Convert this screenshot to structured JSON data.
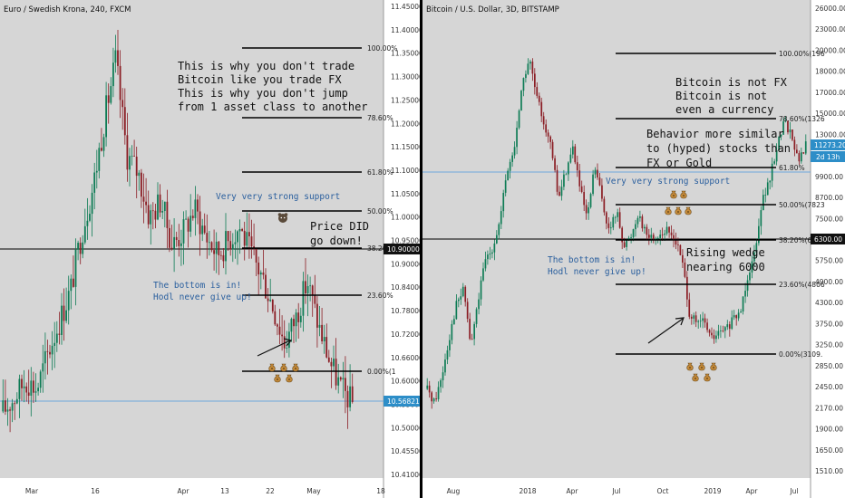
{
  "colors": {
    "panel_bg": "#d6d6d6",
    "axis_bg": "#ffffff",
    "up": "#0e7c55",
    "down": "#8b1d24",
    "fib_line": "#000000",
    "fib_label": "#222222",
    "blue_line": "#6fa8dc",
    "blue_text": "#2a5f9e",
    "black_text": "#111111",
    "price_tag_blue": "#2d8ec8",
    "price_tag_black": "#111111",
    "divider": "#000000"
  },
  "panels": [
    {
      "id": "eursek",
      "title": "Euro / Swedish Krona, 240, FXCM",
      "y_ticks": [
        "11.45000",
        "11.40000",
        "11.35000",
        "11.30000",
        "11.25000",
        "11.20000",
        "11.15000",
        "11.10000",
        "11.05000",
        "11.00000",
        "10.95000",
        "10.90000",
        "10.84000",
        "10.78000",
        "10.72000",
        "10.66000",
        "10.60000",
        "10.55000",
        "10.50000",
        "10.45500",
        "10.41000"
      ],
      "x_ticks": [
        "Mar",
        "16",
        "Apr",
        "13",
        "22",
        "May",
        "18"
      ],
      "price_tags": [
        {
          "text": "10.90000",
          "style": "black"
        },
        {
          "text": "10.56821",
          "style": "blue"
        }
      ],
      "fib_levels": [
        {
          "label": "100.00%"
        },
        {
          "label": "78.60%"
        },
        {
          "label": "61.80%"
        },
        {
          "label": "50.00%"
        },
        {
          "label": "38.20%"
        },
        {
          "label": "23.60%"
        },
        {
          "label": "0.00%(1"
        }
      ],
      "annotations": {
        "main_text": [
          "This is why you don't trade",
          "Bitcoin like you trade FX",
          "This is why you don't jump",
          "from 1 asset class to another"
        ],
        "support": "Very very strong support",
        "price_did": [
          "Price DID",
          "go down!"
        ],
        "bottom": [
          "The bottom is in!",
          "Hodl never give up!"
        ]
      },
      "icons": [
        "bear-icon",
        "money-bag-icon"
      ],
      "chart_data": {
        "type": "candlestick",
        "title": "Euro / Swedish Krona, 240, FXCM",
        "x_categories": [
          "Mar",
          "16",
          "Apr",
          "13",
          "22",
          "May",
          "18"
        ],
        "ylim": [
          10.41,
          11.45
        ],
        "price_path_approx": [
          10.55,
          10.58,
          10.62,
          10.6,
          10.68,
          10.75,
          10.82,
          10.95,
          11.05,
          11.2,
          11.33,
          11.12,
          11.08,
          10.98,
          11.02,
          10.92,
          10.95,
          11.0,
          10.94,
          10.9,
          10.93,
          10.96,
          10.9,
          10.85,
          10.78,
          10.7,
          10.76,
          10.84,
          10.74,
          10.66,
          10.6,
          10.57
        ],
        "fib_retracement": [
          {
            "level": "100.00%",
            "price": 11.35
          },
          {
            "level": "78.60%",
            "price": 11.19
          },
          {
            "level": "61.80%",
            "price": 11.07
          },
          {
            "level": "50.00%",
            "price": 10.98
          },
          {
            "level": "38.20%",
            "price": 10.9
          },
          {
            "level": "23.60%",
            "price": 10.79
          },
          {
            "level": "0.00%",
            "price": 10.62
          }
        ],
        "horizontal_lines": [
          {
            "price": 10.9,
            "color": "black"
          },
          {
            "price": 10.56821,
            "color": "blue"
          }
        ]
      }
    },
    {
      "id": "btcusd",
      "title": "Bitcoin / U.S. Dollar, 3D, BITSTAMP",
      "y_ticks": [
        "26000.00",
        "23000.00",
        "20000.00",
        "18000.00",
        "17000.00",
        "15000.00",
        "13000.00",
        "11500.00",
        "9900.00",
        "8700.00",
        "7500.00",
        "6300.00",
        "5750.00",
        "4900.00",
        "4300.00",
        "3750.00",
        "3250.00",
        "2850.00",
        "2450.00",
        "2170.00",
        "1900.00",
        "1650.00",
        "1510.00"
      ],
      "x_ticks": [
        "Aug",
        "2018",
        "Apr",
        "Jul",
        "Oct",
        "2019",
        "Apr",
        "Jul"
      ],
      "price_tags": [
        {
          "text": "11273.20",
          "style": "blue"
        },
        {
          "text": "2d 13h",
          "style": "blue"
        },
        {
          "text": "6300.00",
          "style": "black"
        }
      ],
      "fib_levels": [
        {
          "label": "100.00%(196"
        },
        {
          "label": "78.60%(1326"
        },
        {
          "label": "61.80%"
        },
        {
          "label": "50.00%(7823"
        },
        {
          "label": "38.20%(6292"
        },
        {
          "label": "23.60%(4806"
        },
        {
          "label": "0.00%(3109."
        }
      ],
      "annotations": {
        "main_text": [
          "Bitcoin is not FX",
          "Bitcoin is not",
          "even a currency"
        ],
        "behavior": [
          "Behavior more similar",
          "to (hyped) stocks than",
          "FX or Gold"
        ],
        "support": "Very very strong support",
        "bottom": [
          "The bottom is in!",
          "Hodl never give up!"
        ],
        "wedge": [
          "Rising wedge",
          "nearing 6000"
        ]
      },
      "icons": [
        "money-bag-icon"
      ],
      "chart_data": {
        "type": "candlestick",
        "title": "Bitcoin / U.S. Dollar, 3D, BITSTAMP",
        "x_categories": [
          "Aug",
          "2018",
          "Apr",
          "Jul",
          "Oct",
          "2019",
          "Apr",
          "Jul"
        ],
        "ylim": [
          1510,
          26000
        ],
        "scale": "log",
        "price_path_approx": [
          2500,
          2300,
          2700,
          3400,
          4200,
          4600,
          3200,
          4300,
          5500,
          6000,
          7000,
          9500,
          11000,
          16000,
          19000,
          15000,
          13000,
          11000,
          8000,
          9500,
          11000,
          8500,
          7000,
          9800,
          8000,
          6500,
          7500,
          6000,
          6400,
          7400,
          6500,
          6300,
          6500,
          6600,
          6300,
          5500,
          4000,
          3700,
          3800,
          3400,
          3500,
          3600,
          3800,
          4000,
          5000,
          5800,
          8000,
          8900,
          11000,
          13000,
          12000,
          10000,
          11273
        ],
        "fib_retracement": [
          {
            "level": "100.00%",
            "price": 19666
          },
          {
            "level": "78.60%",
            "price": 13260
          },
          {
            "level": "61.80%",
            "price": 9950
          },
          {
            "level": "50.00%",
            "price": 7823
          },
          {
            "level": "38.20%",
            "price": 6292
          },
          {
            "level": "23.60%",
            "price": 4806
          },
          {
            "level": "0.00%",
            "price": 3109
          }
        ],
        "horizontal_lines": [
          {
            "price": 9300,
            "color": "blue"
          },
          {
            "price": 6300.0,
            "color": "black"
          }
        ]
      }
    }
  ]
}
